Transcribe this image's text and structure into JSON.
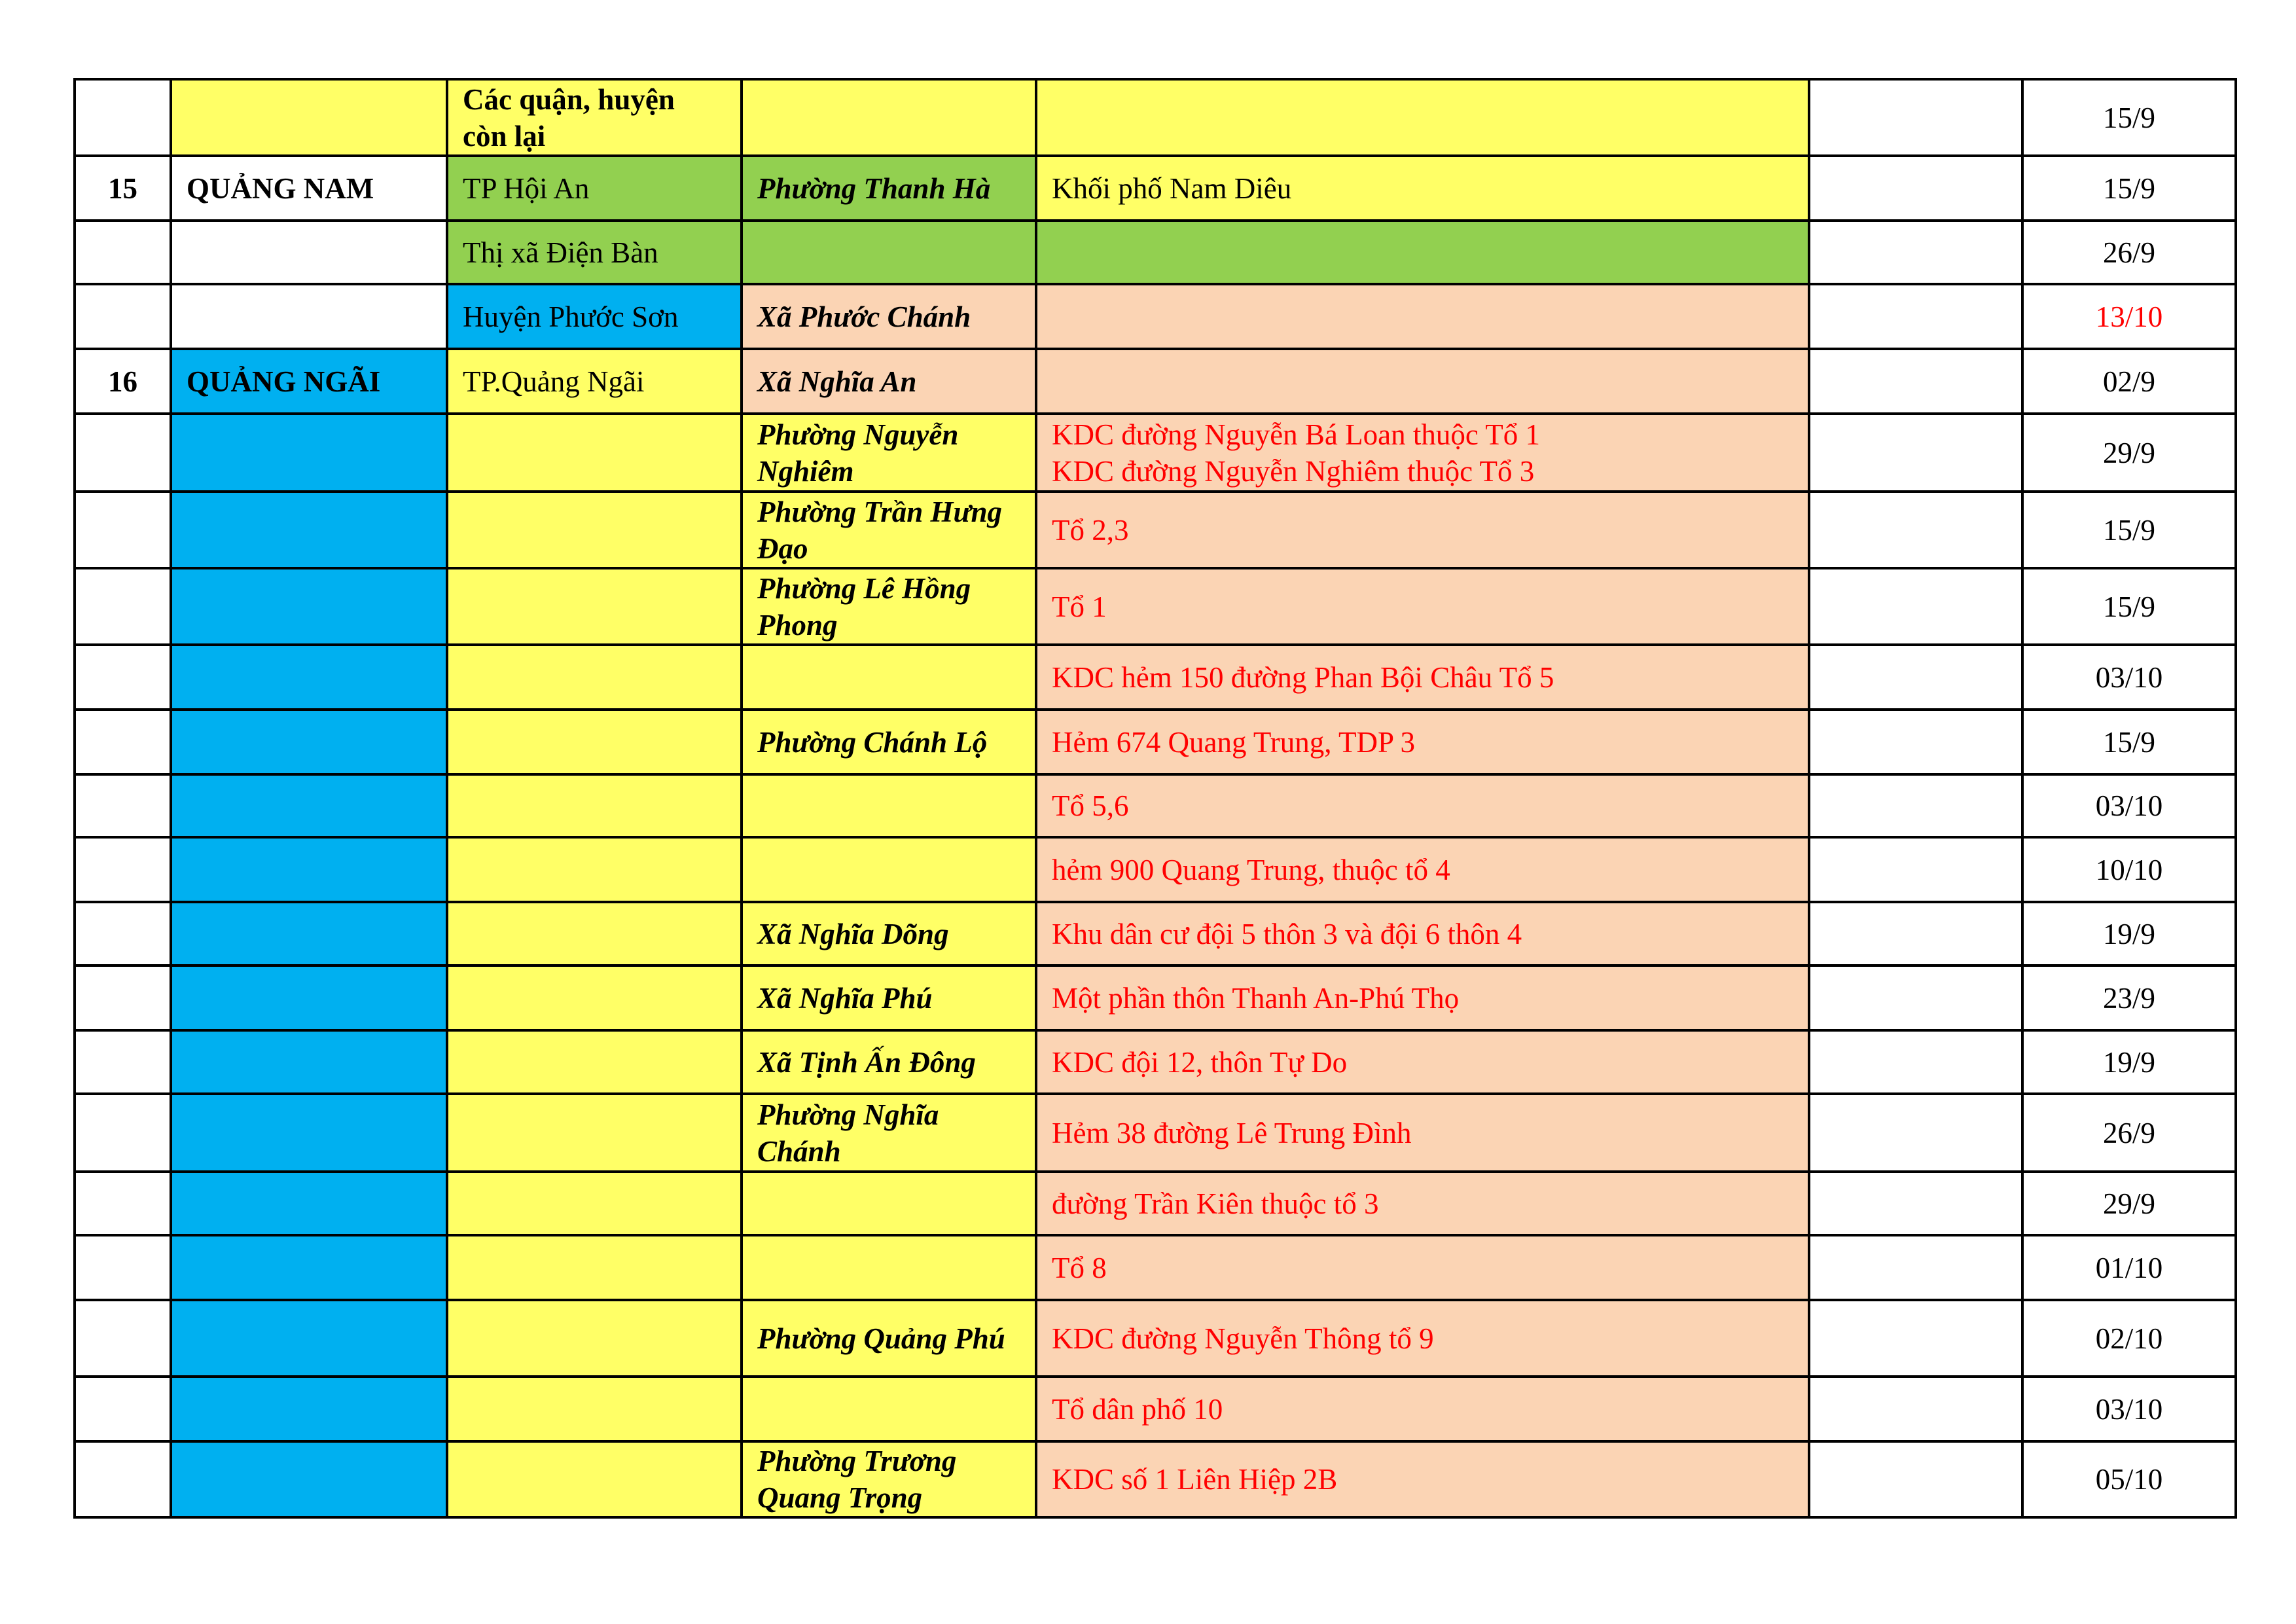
{
  "colors": {
    "yellow": "#FFFF66",
    "green": "#92D050",
    "blue": "#00B0F0",
    "peach": "#FBD4B4",
    "red_text": "#FF0000"
  },
  "rows": [
    {
      "stt": "",
      "province": "",
      "district": "Các quận, huyện còn lại",
      "ward": "",
      "area": "",
      "note": "",
      "date": "15/9",
      "bg": [
        "w",
        "y",
        "y",
        "y",
        "y",
        "w",
        "w"
      ],
      "district_bold": true
    },
    {
      "stt": "15",
      "province": "QUẢNG NAM",
      "district": "TP Hội An",
      "ward": "Phường Thanh Hà",
      "area": "Khối phố Nam Diêu",
      "note": "",
      "date": "15/9",
      "bg": [
        "w",
        "w",
        "g",
        "g",
        "y",
        "w",
        "w"
      ]
    },
    {
      "stt": "",
      "province": "",
      "district": "Thị xã Điện Bàn",
      "ward": "",
      "area": "",
      "note": "",
      "date": "26/9",
      "bg": [
        "w",
        "w",
        "g",
        "g",
        "g",
        "w",
        "w"
      ]
    },
    {
      "stt": "",
      "province": "",
      "district": "Huyện Phước Sơn",
      "ward": "Xã Phước Chánh",
      "area": "",
      "note": "",
      "date": "13/10",
      "bg": [
        "w",
        "w",
        "b",
        "p",
        "p",
        "w",
        "w"
      ],
      "date_red": true
    },
    {
      "stt": "16",
      "province": "QUẢNG NGÃI",
      "district": "TP.Quảng Ngãi",
      "ward": "Xã Nghĩa An",
      "area": "",
      "note": "",
      "date": "02/9",
      "bg": [
        "w",
        "b",
        "y",
        "p",
        "p",
        "w",
        "w"
      ]
    },
    {
      "stt": "",
      "province": "",
      "district": "",
      "ward": "Phường Nguyễn Nghiêm",
      "area": "KDC đường Nguyễn Bá Loan thuộc Tổ 1\nKDC đường Nguyễn Nghiêm thuộc Tổ 3",
      "note": "",
      "date": "29/9",
      "bg": [
        "w",
        "b",
        "y",
        "y",
        "p",
        "w",
        "w"
      ],
      "area_red": true
    },
    {
      "stt": "",
      "province": "",
      "district": "",
      "ward": "Phường Trần Hưng Đạo",
      "area": "Tổ 2,3",
      "note": "",
      "date": "15/9",
      "bg": [
        "w",
        "b",
        "y",
        "y",
        "p",
        "w",
        "w"
      ],
      "area_red": true
    },
    {
      "stt": "",
      "province": "",
      "district": "",
      "ward": "Phường Lê Hồng Phong",
      "area": "Tổ 1",
      "note": "",
      "date": "15/9",
      "bg": [
        "w",
        "b",
        "y",
        "y",
        "p",
        "w",
        "w"
      ],
      "area_red": true
    },
    {
      "stt": "",
      "province": "",
      "district": "",
      "ward": "",
      "area": "KDC hẻm 150 đường Phan Bội Châu Tổ 5",
      "note": "",
      "date": "03/10",
      "bg": [
        "w",
        "b",
        "y",
        "y",
        "p",
        "w",
        "w"
      ],
      "area_red": true
    },
    {
      "stt": "",
      "province": "",
      "district": "",
      "ward": "Phường Chánh Lộ",
      "area": "Hẻm 674 Quang Trung, TDP 3",
      "note": "",
      "date": "15/9",
      "bg": [
        "w",
        "b",
        "y",
        "y",
        "p",
        "w",
        "w"
      ],
      "area_red": true
    },
    {
      "stt": "",
      "province": "",
      "district": "",
      "ward": "",
      "area": "Tổ 5,6",
      "note": "",
      "date": "03/10",
      "bg": [
        "w",
        "b",
        "y",
        "y",
        "p",
        "w",
        "w"
      ],
      "area_red": true
    },
    {
      "stt": "",
      "province": "",
      "district": "",
      "ward": "",
      "area": "hẻm 900 Quang Trung, thuộc tổ 4",
      "note": "",
      "date": "10/10",
      "bg": [
        "w",
        "b",
        "y",
        "y",
        "p",
        "w",
        "w"
      ],
      "area_red": true
    },
    {
      "stt": "",
      "province": "",
      "district": "",
      "ward": "Xã Nghĩa Dõng",
      "area": "Khu dân cư đội 5 thôn 3 và đội 6 thôn 4",
      "note": "",
      "date": "19/9",
      "bg": [
        "w",
        "b",
        "y",
        "y",
        "p",
        "w",
        "w"
      ],
      "area_red": true
    },
    {
      "stt": "",
      "province": "",
      "district": "",
      "ward": "Xã Nghĩa Phú",
      "area": "Một phần thôn Thanh An-Phú Thọ",
      "note": "",
      "date": "23/9",
      "bg": [
        "w",
        "b",
        "y",
        "y",
        "p",
        "w",
        "w"
      ],
      "area_red": true
    },
    {
      "stt": "",
      "province": "",
      "district": "",
      "ward": "Xã Tịnh Ấn Đông",
      "area": "KDC đội 12, thôn Tự Do",
      "note": "",
      "date": "19/9",
      "bg": [
        "w",
        "b",
        "y",
        "y",
        "p",
        "w",
        "w"
      ],
      "area_red": true
    },
    {
      "stt": "",
      "province": "",
      "district": "",
      "ward": "Phường Nghĩa Chánh",
      "area": "Hẻm 38 đường Lê Trung Đình",
      "note": "",
      "date": "26/9",
      "bg": [
        "w",
        "b",
        "y",
        "y",
        "p",
        "w",
        "w"
      ],
      "area_red": true
    },
    {
      "stt": "",
      "province": "",
      "district": "",
      "ward": "",
      "area": "đường Trần Kiên thuộc tổ 3",
      "note": "",
      "date": "29/9",
      "bg": [
        "w",
        "b",
        "y",
        "y",
        "p",
        "w",
        "w"
      ],
      "area_red": true
    },
    {
      "stt": "",
      "province": "",
      "district": "",
      "ward": "",
      "area": "Tổ 8",
      "note": "",
      "date": "01/10",
      "bg": [
        "w",
        "b",
        "y",
        "y",
        "p",
        "w",
        "w"
      ],
      "area_red": true
    },
    {
      "stt": "",
      "province": "",
      "district": "",
      "ward": "Phường Quảng Phú",
      "area": "KDC đường Nguyễn Thông tổ 9",
      "note": "",
      "date": "02/10",
      "bg": [
        "w",
        "b",
        "y",
        "y",
        "p",
        "w",
        "w"
      ],
      "area_red": true
    },
    {
      "stt": "",
      "province": "",
      "district": "",
      "ward": "",
      "area": "Tổ dân phố 10",
      "note": "",
      "date": "03/10",
      "bg": [
        "w",
        "b",
        "y",
        "y",
        "p",
        "w",
        "w"
      ],
      "area_red": true
    },
    {
      "stt": "",
      "province": "",
      "district": "",
      "ward": "Phường Trương Quang Trọng",
      "area": "KDC số 1 Liên Hiệp 2B",
      "note": "",
      "date": "05/10",
      "bg": [
        "w",
        "b",
        "y",
        "y",
        "p",
        "w",
        "w"
      ],
      "area_red": true
    }
  ]
}
